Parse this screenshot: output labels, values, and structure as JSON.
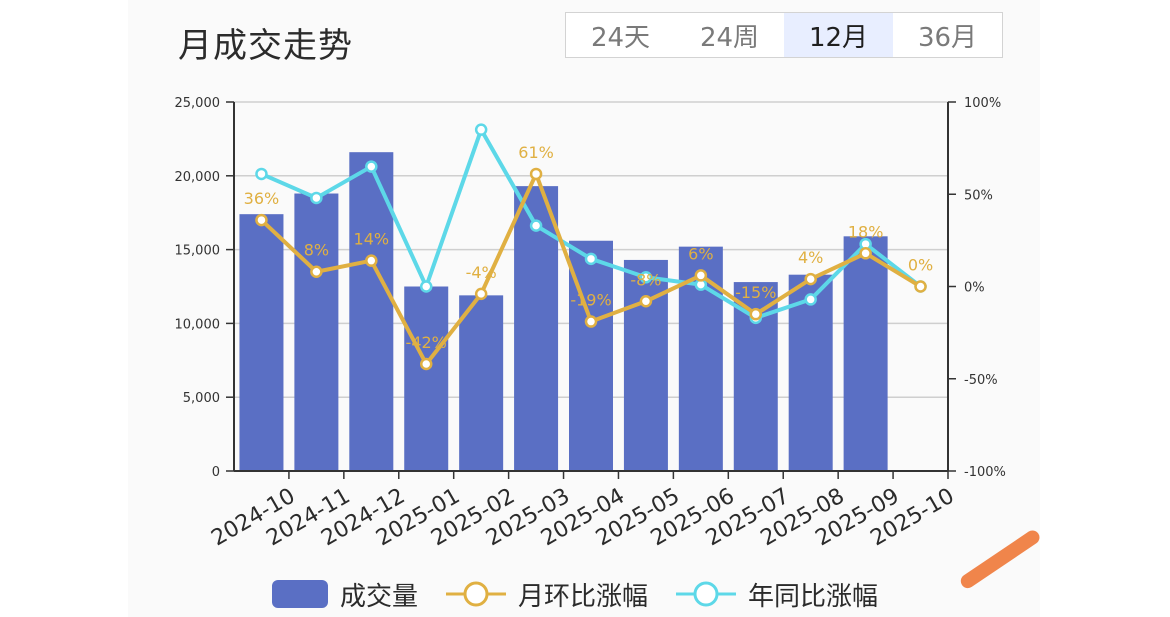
{
  "title": "月成交走势",
  "tabs": [
    {
      "label": "24天",
      "active": false
    },
    {
      "label": "24周",
      "active": false
    },
    {
      "label": "12月",
      "active": true
    },
    {
      "label": "36月",
      "active": false
    }
  ],
  "colors": {
    "bar": "#5a6fc4",
    "mom": "#e0b042",
    "yoy": "#5dd8e8",
    "text": "#2b2b2b"
  },
  "chart_data": {
    "type": "bar",
    "categories": [
      "2024-10",
      "2024-11",
      "2024-12",
      "2025-01",
      "2025-02",
      "2025-03",
      "2025-04",
      "2025-05",
      "2025-06",
      "2025-07",
      "2025-08",
      "2025-09",
      "2025-10"
    ],
    "y_left": {
      "min": 0,
      "max": 25000,
      "ticks": [
        "0",
        "5,000",
        "10,000",
        "15,000",
        "20,000",
        "25,000"
      ]
    },
    "y_right": {
      "min": -100,
      "max": 100,
      "ticks": [
        "-100%",
        "-50%",
        "0%",
        "50%",
        "100%"
      ]
    },
    "grid": true,
    "legend_position": "bottom",
    "series": [
      {
        "name": "成交量",
        "type": "bar",
        "axis": "left",
        "values": [
          17400,
          18800,
          21600,
          12500,
          11900,
          19300,
          15600,
          14300,
          15200,
          12800,
          13300,
          15900,
          null
        ]
      },
      {
        "name": "月环比涨幅",
        "type": "line",
        "axis": "right",
        "values": [
          36,
          8,
          14,
          -42,
          -4,
          61,
          -19,
          -8,
          6,
          -15,
          4,
          18,
          0
        ],
        "labels": [
          "36%",
          "8%",
          "14%",
          "-42%",
          "-4%",
          "61%",
          "-19%",
          "-8%",
          "6%",
          "-15%",
          "4%",
          "18%",
          "0%"
        ]
      },
      {
        "name": "年同比涨幅",
        "type": "line",
        "axis": "right",
        "values": [
          61,
          48,
          65,
          0,
          85,
          33,
          15,
          5,
          1,
          -17,
          -7,
          23,
          0
        ]
      }
    ]
  }
}
